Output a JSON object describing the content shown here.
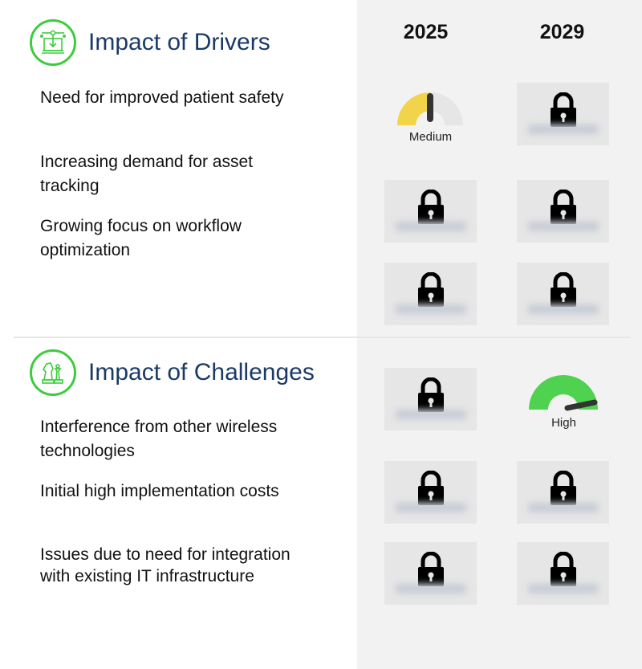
{
  "columns": [
    "2025",
    "2029"
  ],
  "drivers": {
    "title": "Impact of Drivers",
    "icon": "circuit-laptop-icon",
    "items": [
      {
        "label": "Need for improved patient safety",
        "2025": {
          "locked": false,
          "level": "Medium"
        },
        "2029": {
          "locked": true
        }
      },
      {
        "label": "Increasing demand for asset tracking",
        "2025": {
          "locked": true
        },
        "2029": {
          "locked": true
        }
      },
      {
        "label": "Growing focus on workflow optimization",
        "2025": {
          "locked": true
        },
        "2029": {
          "locked": true
        }
      }
    ]
  },
  "challenges": {
    "title": "Impact of Challenges",
    "icon": "chess-pieces-icon",
    "items": [
      {
        "label": "Interference from other wireless technologies",
        "2025": {
          "locked": true
        },
        "2029": {
          "locked": false,
          "level": "High"
        }
      },
      {
        "label": "Initial high implementation costs",
        "2025": {
          "locked": true
        },
        "2029": {
          "locked": true
        }
      },
      {
        "label": "Issues due to need for integration with existing IT infrastructure",
        "2025": {
          "locked": true
        },
        "2029": {
          "locked": true
        }
      }
    ]
  },
  "colors": {
    "accent_green": "#3dcc3d",
    "title_blue": "#1b3a66",
    "medium": "#f2d44a",
    "high": "#4fd24f"
  }
}
